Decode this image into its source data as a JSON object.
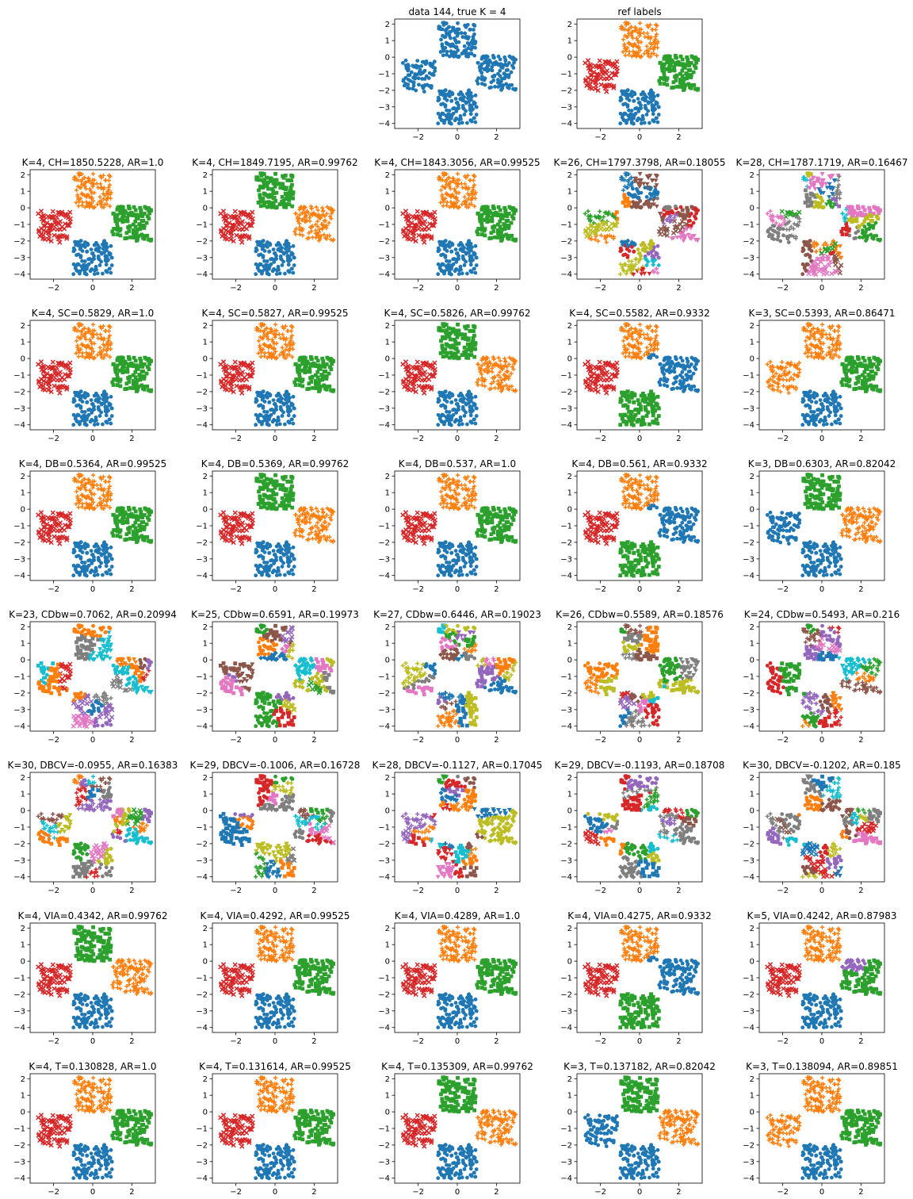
{
  "figure": {
    "dataset": "data 144",
    "true_k": 4
  },
  "chart_data": [
    {
      "type": "scatter",
      "title": "data 144, true K = 4",
      "scheme": "raw",
      "xlim": [
        -3.2,
        3.2
      ],
      "ylim": [
        -4.3,
        2.3
      ],
      "xticks": [
        -2,
        0,
        2
      ],
      "yticks": [
        -4,
        -3,
        -2,
        -1,
        0,
        1,
        2
      ]
    },
    {
      "type": "scatter",
      "title": "ref labels",
      "scheme": "ref",
      "xlim": [
        -3.2,
        3.2
      ],
      "ylim": [
        -4.3,
        2.3
      ],
      "xticks": [
        -2,
        0,
        2
      ],
      "yticks": [
        -4,
        -3,
        -2,
        -1,
        0,
        1,
        2
      ]
    },
    {
      "type": "scatter",
      "title": "K=4, CH=1850.5228, AR=1.0",
      "scheme": "ref",
      "xlim": [
        -3.2,
        3.2
      ],
      "ylim": [
        -4.3,
        2.3
      ],
      "xticks": [
        -2,
        0,
        2
      ],
      "yticks": [
        -4,
        -3,
        -2,
        -1,
        0,
        1,
        2
      ]
    },
    {
      "type": "scatter",
      "title": "K=4, CH=1849.7195, AR=0.99762",
      "scheme": "swapTR",
      "xlim": [
        -3.2,
        3.2
      ],
      "ylim": [
        -4.3,
        2.3
      ],
      "xticks": [
        -2,
        0,
        2
      ],
      "yticks": [
        -4,
        -3,
        -2,
        -1,
        0,
        1,
        2
      ]
    },
    {
      "type": "scatter",
      "title": "K=4, CH=1843.3056, AR=0.99525",
      "scheme": "ref",
      "xlim": [
        -3.2,
        3.2
      ],
      "ylim": [
        -4.3,
        2.3
      ],
      "xticks": [
        -2,
        0,
        2
      ],
      "yticks": [
        -4,
        -3,
        -2,
        -1,
        0,
        1,
        2
      ]
    },
    {
      "type": "scatter",
      "title": "K=26, CH=1797.3798, AR=0.18055",
      "scheme": "many",
      "seed": 11,
      "xlim": [
        -3.2,
        3.2
      ],
      "ylim": [
        -4.3,
        2.3
      ],
      "xticks": [
        -2,
        0,
        2
      ],
      "yticks": [
        -4,
        -3,
        -2,
        -1,
        0,
        1,
        2
      ]
    },
    {
      "type": "scatter",
      "title": "K=28, CH=1787.1719, AR=0.16467",
      "scheme": "many",
      "seed": 23,
      "xlim": [
        -3.2,
        3.2
      ],
      "ylim": [
        -4.3,
        2.3
      ],
      "xticks": [
        -2,
        0,
        2
      ],
      "yticks": [
        -4,
        -3,
        -2,
        -1,
        0,
        1,
        2
      ]
    },
    {
      "type": "scatter",
      "title": "K=4, SC=0.5829, AR=1.0",
      "scheme": "ref",
      "xlim": [
        -3.2,
        3.2
      ],
      "ylim": [
        -4.3,
        2.3
      ],
      "xticks": [
        -2,
        0,
        2
      ],
      "yticks": [
        -4,
        -3,
        -2,
        -1,
        0,
        1,
        2
      ]
    },
    {
      "type": "scatter",
      "title": "K=4, SC=0.5827, AR=0.99525",
      "scheme": "ref",
      "xlim": [
        -3.2,
        3.2
      ],
      "ylim": [
        -4.3,
        2.3
      ],
      "xticks": [
        -2,
        0,
        2
      ],
      "yticks": [
        -4,
        -3,
        -2,
        -1,
        0,
        1,
        2
      ]
    },
    {
      "type": "scatter",
      "title": "K=4, SC=0.5826, AR=0.99762",
      "scheme": "swapTR",
      "xlim": [
        -3.2,
        3.2
      ],
      "ylim": [
        -4.3,
        2.3
      ],
      "xticks": [
        -2,
        0,
        2
      ],
      "yticks": [
        -4,
        -3,
        -2,
        -1,
        0,
        1,
        2
      ]
    },
    {
      "type": "scatter",
      "title": "K=4, SC=0.5582, AR=0.9332",
      "scheme": "varA",
      "xlim": [
        -3.2,
        3.2
      ],
      "ylim": [
        -4.3,
        2.3
      ],
      "xticks": [
        -2,
        0,
        2
      ],
      "yticks": [
        -4,
        -3,
        -2,
        -1,
        0,
        1,
        2
      ]
    },
    {
      "type": "scatter",
      "title": "K=3, SC=0.5393, AR=0.86471",
      "scheme": "k3a",
      "xlim": [
        -3.2,
        3.2
      ],
      "ylim": [
        -4.3,
        2.3
      ],
      "xticks": [
        -2,
        0,
        2
      ],
      "yticks": [
        -4,
        -3,
        -2,
        -1,
        0,
        1,
        2
      ]
    },
    {
      "type": "scatter",
      "title": "K=4, DB=0.5364, AR=0.99525",
      "scheme": "ref",
      "xlim": [
        -3.2,
        3.2
      ],
      "ylim": [
        -4.3,
        2.3
      ],
      "xticks": [
        -2,
        0,
        2
      ],
      "yticks": [
        -4,
        -3,
        -2,
        -1,
        0,
        1,
        2
      ]
    },
    {
      "type": "scatter",
      "title": "K=4, DB=0.5369, AR=0.99762",
      "scheme": "swapTR",
      "xlim": [
        -3.2,
        3.2
      ],
      "ylim": [
        -4.3,
        2.3
      ],
      "xticks": [
        -2,
        0,
        2
      ],
      "yticks": [
        -4,
        -3,
        -2,
        -1,
        0,
        1,
        2
      ]
    },
    {
      "type": "scatter",
      "title": "K=4, DB=0.537, AR=1.0",
      "scheme": "ref",
      "xlim": [
        -3.2,
        3.2
      ],
      "ylim": [
        -4.3,
        2.3
      ],
      "xticks": [
        -2,
        0,
        2
      ],
      "yticks": [
        -4,
        -3,
        -2,
        -1,
        0,
        1,
        2
      ]
    },
    {
      "type": "scatter",
      "title": "K=4, DB=0.561, AR=0.9332",
      "scheme": "varA",
      "xlim": [
        -3.2,
        3.2
      ],
      "ylim": [
        -4.3,
        2.3
      ],
      "xticks": [
        -2,
        0,
        2
      ],
      "yticks": [
        -4,
        -3,
        -2,
        -1,
        0,
        1,
        2
      ]
    },
    {
      "type": "scatter",
      "title": "K=3, DB=0.6303, AR=0.82042",
      "scheme": "k3b",
      "xlim": [
        -3.2,
        3.2
      ],
      "ylim": [
        -4.3,
        2.3
      ],
      "xticks": [
        -2,
        0,
        2
      ],
      "yticks": [
        -4,
        -3,
        -2,
        -1,
        0,
        1,
        2
      ]
    },
    {
      "type": "scatter",
      "title": "K=23, CDbw=0.7062, AR=0.20994",
      "scheme": "many",
      "seed": 37,
      "xlim": [
        -3.2,
        3.2
      ],
      "ylim": [
        -4.3,
        2.3
      ],
      "xticks": [
        -2,
        0,
        2
      ],
      "yticks": [
        -4,
        -3,
        -2,
        -1,
        0,
        1,
        2
      ]
    },
    {
      "type": "scatter",
      "title": "K=25, CDbw=0.6591, AR=0.19973",
      "scheme": "many",
      "seed": 41,
      "xlim": [
        -3.2,
        3.2
      ],
      "ylim": [
        -4.3,
        2.3
      ],
      "xticks": [
        -2,
        0,
        2
      ],
      "yticks": [
        -4,
        -3,
        -2,
        -1,
        0,
        1,
        2
      ]
    },
    {
      "type": "scatter",
      "title": "K=27, CDbw=0.6446, AR=0.19023",
      "scheme": "many",
      "seed": 53,
      "xlim": [
        -3.2,
        3.2
      ],
      "ylim": [
        -4.3,
        2.3
      ],
      "xticks": [
        -2,
        0,
        2
      ],
      "yticks": [
        -4,
        -3,
        -2,
        -1,
        0,
        1,
        2
      ]
    },
    {
      "type": "scatter",
      "title": "K=26, CDbw=0.5589, AR=0.18576",
      "scheme": "many",
      "seed": 61,
      "xlim": [
        -3.2,
        3.2
      ],
      "ylim": [
        -4.3,
        2.3
      ],
      "xticks": [
        -2,
        0,
        2
      ],
      "yticks": [
        -4,
        -3,
        -2,
        -1,
        0,
        1,
        2
      ]
    },
    {
      "type": "scatter",
      "title": "K=24, CDbw=0.5493, AR=0.216",
      "scheme": "many",
      "seed": 71,
      "xlim": [
        -3.2,
        3.2
      ],
      "ylim": [
        -4.3,
        2.3
      ],
      "xticks": [
        -2,
        0,
        2
      ],
      "yticks": [
        -4,
        -3,
        -2,
        -1,
        0,
        1,
        2
      ]
    },
    {
      "type": "scatter",
      "title": "K=30, DBCV=-0.0955, AR=0.16383",
      "scheme": "many",
      "seed": 83,
      "xlim": [
        -3.2,
        3.2
      ],
      "ylim": [
        -4.3,
        2.3
      ],
      "xticks": [
        -2,
        0,
        2
      ],
      "yticks": [
        -4,
        -3,
        -2,
        -1,
        0,
        1,
        2
      ]
    },
    {
      "type": "scatter",
      "title": "K=29, DBCV=-0.1006, AR=0.16728",
      "scheme": "many",
      "seed": 97,
      "xlim": [
        -3.2,
        3.2
      ],
      "ylim": [
        -4.3,
        2.3
      ],
      "xticks": [
        -2,
        0,
        2
      ],
      "yticks": [
        -4,
        -3,
        -2,
        -1,
        0,
        1,
        2
      ]
    },
    {
      "type": "scatter",
      "title": "K=28, DBCV=-0.1127, AR=0.17045",
      "scheme": "many",
      "seed": 101,
      "xlim": [
        -3.2,
        3.2
      ],
      "ylim": [
        -4.3,
        2.3
      ],
      "xticks": [
        -2,
        0,
        2
      ],
      "yticks": [
        -4,
        -3,
        -2,
        -1,
        0,
        1,
        2
      ]
    },
    {
      "type": "scatter",
      "title": "K=29, DBCV=-0.1193, AR=0.18708",
      "scheme": "many",
      "seed": 113,
      "xlim": [
        -3.2,
        3.2
      ],
      "ylim": [
        -4.3,
        2.3
      ],
      "xticks": [
        -2,
        0,
        2
      ],
      "yticks": [
        -4,
        -3,
        -2,
        -1,
        0,
        1,
        2
      ]
    },
    {
      "type": "scatter",
      "title": "K=30, DBCV=-0.1202, AR=0.185",
      "scheme": "many",
      "seed": 127,
      "xlim": [
        -3.2,
        3.2
      ],
      "ylim": [
        -4.3,
        2.3
      ],
      "xticks": [
        -2,
        0,
        2
      ],
      "yticks": [
        -4,
        -3,
        -2,
        -1,
        0,
        1,
        2
      ]
    },
    {
      "type": "scatter",
      "title": "K=4, VIA=0.4342, AR=0.99762",
      "scheme": "swapTR",
      "xlim": [
        -3.2,
        3.2
      ],
      "ylim": [
        -4.3,
        2.3
      ],
      "xticks": [
        -2,
        0,
        2
      ],
      "yticks": [
        -4,
        -3,
        -2,
        -1,
        0,
        1,
        2
      ]
    },
    {
      "type": "scatter",
      "title": "K=4, VIA=0.4292, AR=0.99525",
      "scheme": "ref",
      "xlim": [
        -3.2,
        3.2
      ],
      "ylim": [
        -4.3,
        2.3
      ],
      "xticks": [
        -2,
        0,
        2
      ],
      "yticks": [
        -4,
        -3,
        -2,
        -1,
        0,
        1,
        2
      ]
    },
    {
      "type": "scatter",
      "title": "K=4, VIA=0.4289, AR=1.0",
      "scheme": "ref",
      "xlim": [
        -3.2,
        3.2
      ],
      "ylim": [
        -4.3,
        2.3
      ],
      "xticks": [
        -2,
        0,
        2
      ],
      "yticks": [
        -4,
        -3,
        -2,
        -1,
        0,
        1,
        2
      ]
    },
    {
      "type": "scatter",
      "title": "K=4, VIA=0.4275, AR=0.9332",
      "scheme": "varA",
      "xlim": [
        -3.2,
        3.2
      ],
      "ylim": [
        -4.3,
        2.3
      ],
      "xticks": [
        -2,
        0,
        2
      ],
      "yticks": [
        -4,
        -3,
        -2,
        -1,
        0,
        1,
        2
      ]
    },
    {
      "type": "scatter",
      "title": "K=5, VIA=0.4242, AR=0.87983",
      "scheme": "k5",
      "xlim": [
        -3.2,
        3.2
      ],
      "ylim": [
        -4.3,
        2.3
      ],
      "xticks": [
        -2,
        0,
        2
      ],
      "yticks": [
        -4,
        -3,
        -2,
        -1,
        0,
        1,
        2
      ]
    },
    {
      "type": "scatter",
      "title": "K=4, T=0.130828, AR=1.0",
      "scheme": "ref",
      "xlim": [
        -3.2,
        3.2
      ],
      "ylim": [
        -4.3,
        2.3
      ],
      "xticks": [
        -2,
        0,
        2
      ],
      "yticks": [
        -4,
        -3,
        -2,
        -1,
        0,
        1,
        2
      ]
    },
    {
      "type": "scatter",
      "title": "K=4, T=0.131614, AR=0.99525",
      "scheme": "ref",
      "xlim": [
        -3.2,
        3.2
      ],
      "ylim": [
        -4.3,
        2.3
      ],
      "xticks": [
        -2,
        0,
        2
      ],
      "yticks": [
        -4,
        -3,
        -2,
        -1,
        0,
        1,
        2
      ]
    },
    {
      "type": "scatter",
      "title": "K=4, T=0.135309, AR=0.99762",
      "scheme": "swapTR",
      "xlim": [
        -3.2,
        3.2
      ],
      "ylim": [
        -4.3,
        2.3
      ],
      "xticks": [
        -2,
        0,
        2
      ],
      "yticks": [
        -4,
        -3,
        -2,
        -1,
        0,
        1,
        2
      ]
    },
    {
      "type": "scatter",
      "title": "K=3, T=0.137182, AR=0.82042",
      "scheme": "k3b",
      "xlim": [
        -3.2,
        3.2
      ],
      "ylim": [
        -4.3,
        2.3
      ],
      "xticks": [
        -2,
        0,
        2
      ],
      "yticks": [
        -4,
        -3,
        -2,
        -1,
        0,
        1,
        2
      ]
    },
    {
      "type": "scatter",
      "title": "K=3, T=0.138094, AR=0.89851",
      "scheme": "k3a",
      "xlim": [
        -3.2,
        3.2
      ],
      "ylim": [
        -4.3,
        2.3
      ],
      "xticks": [
        -2,
        0,
        2
      ],
      "yticks": [
        -4,
        -3,
        -2,
        -1,
        0,
        1,
        2
      ]
    }
  ],
  "palette": [
    "#1f77b4",
    "#ff7f0e",
    "#2ca02c",
    "#d62728",
    "#9467bd",
    "#8c564b",
    "#e377c2",
    "#7f7f7f",
    "#bcbd22",
    "#17becf"
  ],
  "markers": [
    "circle",
    "plus",
    "square",
    "x",
    "diamond",
    "pentagon",
    "triangle-down",
    "star",
    "hexagon",
    "octagon"
  ]
}
